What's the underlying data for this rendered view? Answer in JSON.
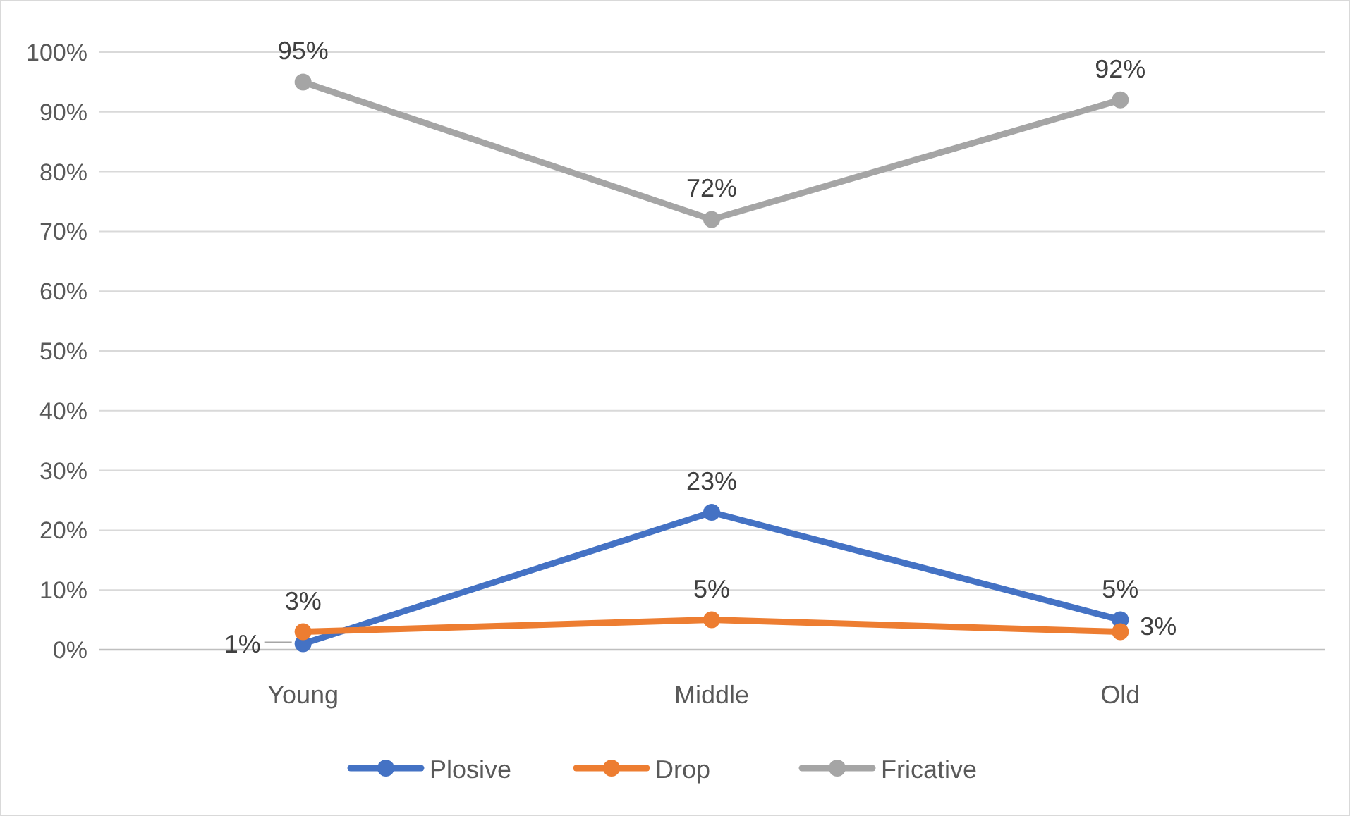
{
  "chart_data": {
    "type": "line",
    "categories": [
      "Young",
      "Middle",
      "Old"
    ],
    "series": [
      {
        "name": "Plosive",
        "color": "#4472c4",
        "values": [
          1,
          23,
          5
        ],
        "value_labels": [
          "1%",
          "23%",
          "5%"
        ]
      },
      {
        "name": "Drop",
        "color": "#ed7d31",
        "values": [
          3,
          5,
          3
        ],
        "value_labels": [
          "3%",
          "5%",
          "3%"
        ]
      },
      {
        "name": "Fricative",
        "color": "#a5a5a5",
        "values": [
          95,
          72,
          92
        ],
        "value_labels": [
          "95%",
          "72%",
          "92%"
        ]
      }
    ],
    "ylim": [
      0,
      100
    ],
    "yticks": [
      {
        "value": 0,
        "label": "0%"
      },
      {
        "value": 10,
        "label": "10%"
      },
      {
        "value": 20,
        "label": "20%"
      },
      {
        "value": 30,
        "label": "30%"
      },
      {
        "value": 40,
        "label": "40%"
      },
      {
        "value": 50,
        "label": "50%"
      },
      {
        "value": 60,
        "label": "60%"
      },
      {
        "value": 70,
        "label": "70%"
      },
      {
        "value": 80,
        "label": "80%"
      },
      {
        "value": 90,
        "label": "90%"
      },
      {
        "value": 100,
        "label": "100%"
      }
    ],
    "grid": "y",
    "legend": "bottom",
    "marker": "circle",
    "line_style": "solid"
  }
}
